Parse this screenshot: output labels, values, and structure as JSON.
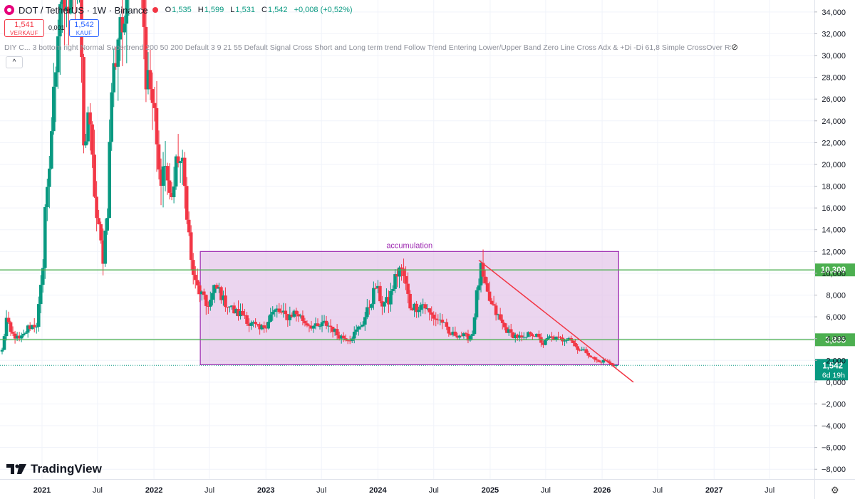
{
  "header": {
    "symbol": "DOT / TetherUS · 1W · Binance",
    "ohlc": [
      {
        "k": "O",
        "v": "1,535"
      },
      {
        "k": "H",
        "v": "1,599"
      },
      {
        "k": "L",
        "v": "1,531"
      },
      {
        "k": "C",
        "v": "1,542"
      },
      {
        "k": "",
        "v": "+0,008 (+0,52%)"
      }
    ],
    "sell_price": "1,541",
    "sell_label": "VERKAUF",
    "spread": "0,001",
    "buy_price": "1,542",
    "buy_label": "KAUF",
    "indicator_line": "DIY C...  3 bottom right Normal Supertrend 200 50 200 Default 3 9 21 55 Default Signal Cross Short and Long term trend Follow Trend Entering Lower/Upper Band Zero Line Cross Adx & +Di -Di 61,8 Simple CrossOver RSI",
    "collapse_glyph": "^"
  },
  "branding": {
    "logo_text": "TradingView"
  },
  "colors": {
    "up": "#089981",
    "down": "#f23645",
    "level_line": "#4caf50",
    "box_fill": "#e1bee7",
    "box_border": "#9c27b0",
    "trendline": "#f23645",
    "current_price_bg": "#089981"
  },
  "chart_data": {
    "type": "candlestick",
    "title": "DOT / TetherUS · 1W · Binance",
    "y_axis": {
      "ticks": [
        -8000,
        -6000,
        -4000,
        -2000,
        0,
        2000,
        4000,
        6000,
        8000,
        10000,
        12000,
        14000,
        16000,
        18000,
        20000,
        22000,
        24000,
        26000,
        28000,
        30000,
        32000,
        34000
      ],
      "tick_labels": [
        "−8,000",
        "−6,000",
        "−4,000",
        "−2,000",
        "0,000",
        "2,000",
        "4,000",
        "6,000",
        "8,000",
        "10,000",
        "12,000",
        "14,000",
        "16,000",
        "18,000",
        "20,000",
        "22,000",
        "24,000",
        "26,000",
        "28,000",
        "30,000",
        "32,000",
        "34,000"
      ],
      "range": [
        -8900,
        35100
      ]
    },
    "x_axis": {
      "ticks": [
        {
          "label": "2021",
          "date": "2021-01-01"
        },
        {
          "label": "Jul",
          "date": "2021-07-01"
        },
        {
          "label": "2022",
          "date": "2022-01-01"
        },
        {
          "label": "Jul",
          "date": "2022-07-01"
        },
        {
          "label": "2023",
          "date": "2023-01-01"
        },
        {
          "label": "Jul",
          "date": "2023-07-01"
        },
        {
          "label": "2024",
          "date": "2024-01-01"
        },
        {
          "label": "Jul",
          "date": "2024-07-01"
        },
        {
          "label": "2025",
          "date": "2025-01-01"
        },
        {
          "label": "Jul",
          "date": "2025-07-01"
        },
        {
          "label": "2026",
          "date": "2026-01-01"
        },
        {
          "label": "Jul",
          "date": "2026-07-01"
        },
        {
          "label": "2027",
          "date": "2027-01-01"
        },
        {
          "label": "Jul",
          "date": "2027-07-01"
        }
      ],
      "range": [
        "2020-08-17",
        "2027-11-24"
      ]
    },
    "series": [
      {
        "type": "weekly_close_path",
        "points": [
          [
            "2020-08-24",
            2.9
          ],
          [
            "2020-09-07",
            5.8
          ],
          [
            "2020-09-21",
            4.5
          ],
          [
            "2020-10-05",
            4.2
          ],
          [
            "2020-10-19",
            3.9
          ],
          [
            "2020-11-02",
            4.3
          ],
          [
            "2020-11-16",
            5.0
          ],
          [
            "2020-11-30",
            5.2
          ],
          [
            "2020-12-14",
            5.3
          ],
          [
            "2020-12-28",
            8.5
          ],
          [
            "2021-01-04",
            10.0
          ],
          [
            "2021-01-11",
            17.0
          ],
          [
            "2021-01-25",
            19.0
          ],
          [
            "2021-02-08",
            28.0
          ],
          [
            "2021-02-22",
            30.0
          ],
          [
            "2021-03-08",
            36.0
          ],
          [
            "2021-03-22",
            33.0
          ],
          [
            "2021-04-05",
            38.0
          ],
          [
            "2021-04-19",
            36.0
          ],
          [
            "2021-05-03",
            39.0
          ],
          [
            "2021-05-17",
            21.0
          ],
          [
            "2021-05-31",
            25.0
          ],
          [
            "2021-06-14",
            20.0
          ],
          [
            "2021-06-28",
            15.0
          ],
          [
            "2021-07-19",
            11.5
          ],
          [
            "2021-08-02",
            16.0
          ],
          [
            "2021-08-16",
            27.0
          ],
          [
            "2021-08-30",
            30.0
          ],
          [
            "2021-09-13",
            34.0
          ],
          [
            "2021-09-27",
            31.0
          ],
          [
            "2021-10-11",
            40.0
          ],
          [
            "2021-10-25",
            45.0
          ],
          [
            "2021-11-08",
            52.0
          ],
          [
            "2021-11-22",
            38.0
          ],
          [
            "2021-12-06",
            28.0
          ],
          [
            "2021-12-20",
            27.0
          ],
          [
            "2022-01-03",
            24.0
          ],
          [
            "2022-01-17",
            19.0
          ],
          [
            "2022-02-07",
            20.0
          ],
          [
            "2022-02-21",
            17.0
          ],
          [
            "2022-03-07",
            18.0
          ],
          [
            "2022-03-21",
            21.0
          ],
          [
            "2022-04-04",
            19.5
          ],
          [
            "2022-04-18",
            16.0
          ],
          [
            "2022-05-02",
            11.0
          ],
          [
            "2022-05-16",
            9.0
          ],
          [
            "2022-06-06",
            8.0
          ],
          [
            "2022-06-20",
            7.0
          ],
          [
            "2022-07-04",
            7.5
          ],
          [
            "2022-07-18",
            8.5
          ],
          [
            "2022-08-01",
            8.5
          ],
          [
            "2022-08-15",
            7.5
          ],
          [
            "2022-09-05",
            7.0
          ],
          [
            "2022-09-19",
            6.5
          ],
          [
            "2022-10-03",
            6.3
          ],
          [
            "2022-10-24",
            6.2
          ],
          [
            "2022-11-07",
            5.3
          ],
          [
            "2022-11-21",
            5.3
          ],
          [
            "2022-12-12",
            4.8
          ],
          [
            "2023-01-02",
            5.3
          ],
          [
            "2023-01-16",
            6.2
          ],
          [
            "2023-02-06",
            6.6
          ],
          [
            "2023-02-20",
            6.3
          ],
          [
            "2023-03-13",
            6.0
          ],
          [
            "2023-04-03",
            6.4
          ],
          [
            "2023-04-17",
            6.2
          ],
          [
            "2023-05-08",
            5.5
          ],
          [
            "2023-05-29",
            5.2
          ],
          [
            "2023-06-19",
            5.0
          ],
          [
            "2023-07-10",
            5.4
          ],
          [
            "2023-07-31",
            5.1
          ],
          [
            "2023-08-21",
            4.4
          ],
          [
            "2023-09-11",
            4.1
          ],
          [
            "2023-10-02",
            4.0
          ],
          [
            "2023-10-23",
            4.7
          ],
          [
            "2023-11-13",
            5.5
          ],
          [
            "2023-12-04",
            7.0
          ],
          [
            "2023-12-25",
            8.8
          ],
          [
            "2024-01-15",
            7.2
          ],
          [
            "2024-02-05",
            7.4
          ],
          [
            "2024-02-26",
            9.5
          ],
          [
            "2024-03-11",
            10.5
          ],
          [
            "2024-03-25",
            9.7
          ],
          [
            "2024-04-15",
            7.0
          ],
          [
            "2024-05-06",
            6.9
          ],
          [
            "2024-05-27",
            7.2
          ],
          [
            "2024-06-17",
            6.3
          ],
          [
            "2024-07-08",
            5.8
          ],
          [
            "2024-07-29",
            5.6
          ],
          [
            "2024-08-19",
            4.4
          ],
          [
            "2024-09-09",
            4.4
          ],
          [
            "2024-09-30",
            4.3
          ],
          [
            "2024-10-21",
            4.1
          ],
          [
            "2024-11-04",
            4.5
          ],
          [
            "2024-11-18",
            8.0
          ],
          [
            "2024-12-02",
            10.3
          ],
          [
            "2024-12-16",
            8.5
          ],
          [
            "2025-01-06",
            7.0
          ],
          [
            "2025-01-27",
            6.0
          ],
          [
            "2025-02-17",
            5.0
          ],
          [
            "2025-03-10",
            4.4
          ],
          [
            "2025-03-31",
            4.2
          ],
          [
            "2025-04-21",
            3.9
          ],
          [
            "2025-05-12",
            4.6
          ],
          [
            "2025-06-02",
            4.2
          ],
          [
            "2025-06-23",
            3.5
          ],
          [
            "2025-07-14",
            4.1
          ],
          [
            "2025-08-04",
            4.0
          ],
          [
            "2025-08-25",
            3.9
          ],
          [
            "2025-09-15",
            4.2
          ],
          [
            "2025-10-06",
            3.3
          ],
          [
            "2025-10-20",
            3.0
          ],
          [
            "2025-11-10",
            2.8
          ],
          [
            "2025-12-01",
            2.2
          ],
          [
            "2025-12-22",
            1.85
          ],
          [
            "2026-01-12",
            2.0
          ],
          [
            "2026-02-02",
            1.6
          ],
          [
            "2026-02-16",
            1.54
          ]
        ]
      }
    ],
    "horizontal_levels": [
      {
        "value": 10309,
        "label": "10,309"
      },
      {
        "value": 3895,
        "label": "3,895"
      }
    ],
    "annotations": [
      {
        "type": "rectangle",
        "label": "accumulation",
        "from": "2022-06-01",
        "to": "2026-02-24",
        "low": 1600,
        "high": 12000
      },
      {
        "type": "trendline",
        "from": {
          "date": "2024-11-25",
          "value": 11200
        },
        "to": {
          "date": "2026-04-13",
          "value": 0
        }
      }
    ],
    "current_price": {
      "value": 1542,
      "label": "1,542",
      "countdown": "6d 19h"
    }
  }
}
